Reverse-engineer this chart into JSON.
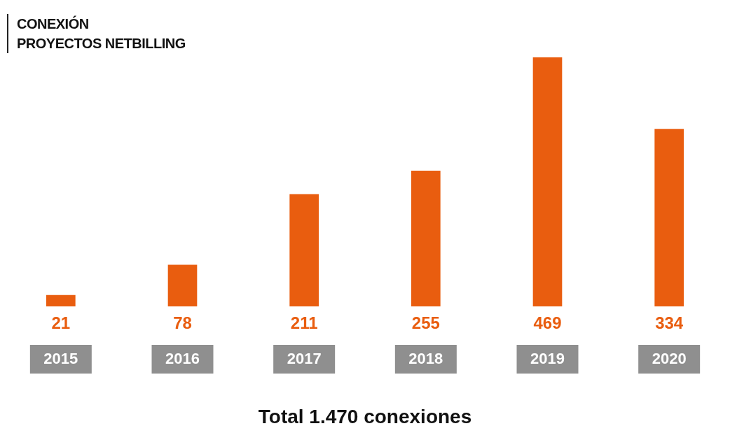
{
  "chart_data": {
    "type": "bar",
    "title": "CONEXIÓN\nPROYECTOS NETBILLING",
    "categories": [
      "2015",
      "2016",
      "2017",
      "2018",
      "2019",
      "2020"
    ],
    "values": [
      21,
      78,
      211,
      255,
      469,
      334
    ],
    "color": "#e95d0f",
    "data_labels": true,
    "annotations": [
      "Total 1.470 conexiones"
    ]
  }
}
